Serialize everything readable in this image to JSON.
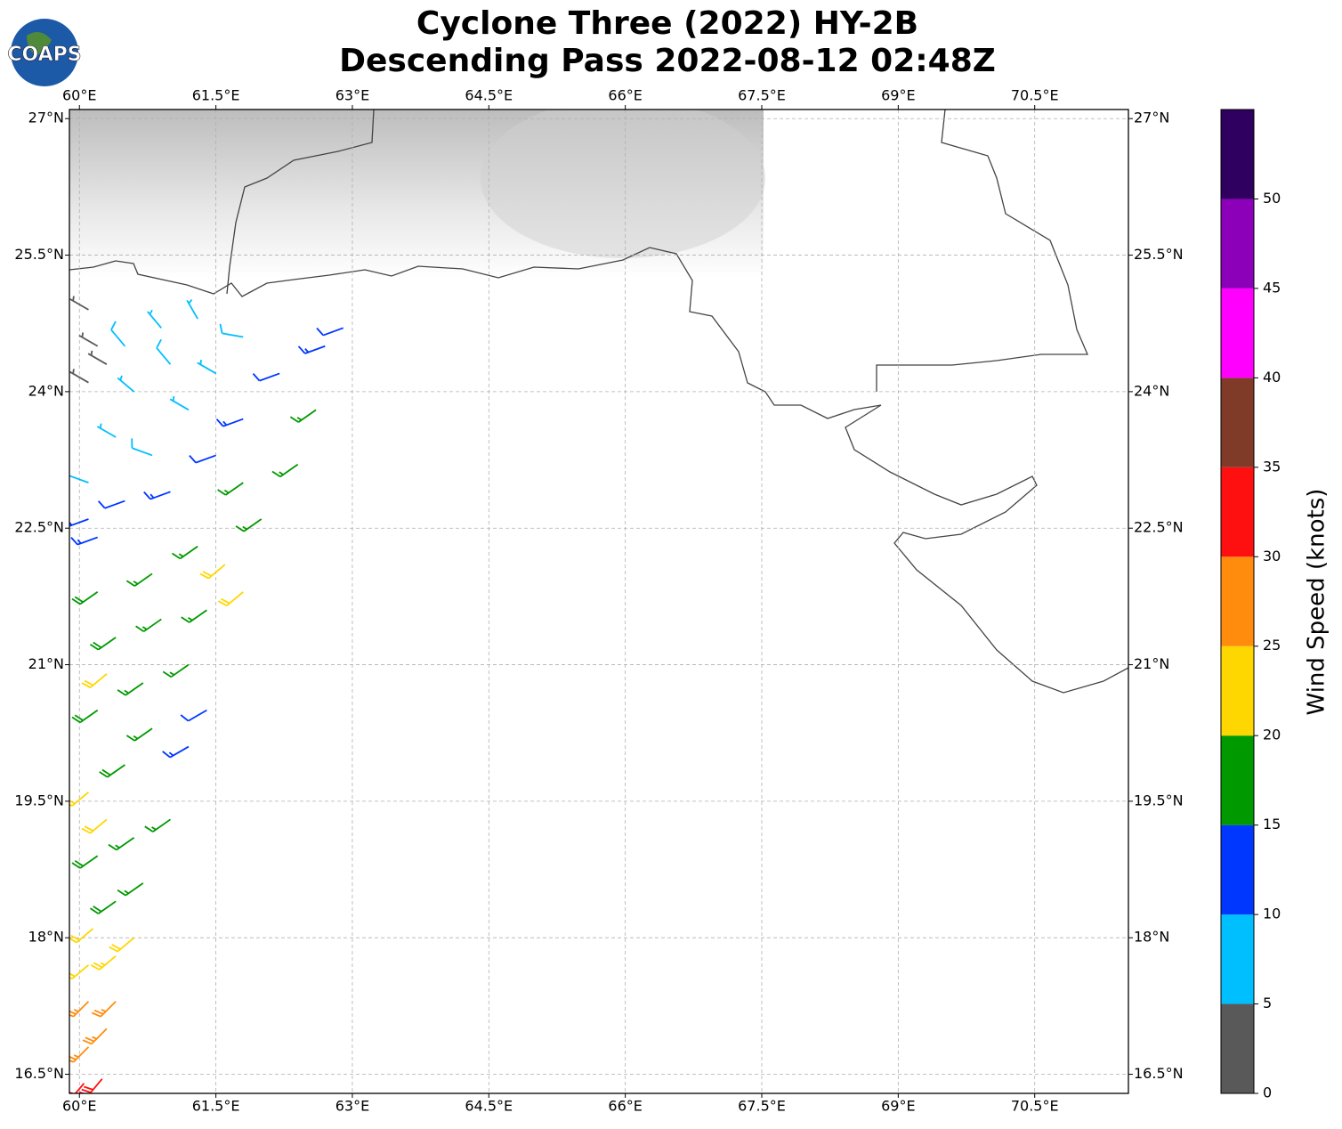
{
  "logo_text": "COAPS",
  "chart_data": {
    "type": "barbs",
    "title": "Cyclone Three (2022) HY-2B",
    "subtitle": "Descending Pass 2022-08-12 02:48Z",
    "xlim": [
      59.89,
      71.53
    ],
    "ylim": [
      16.29,
      27.1
    ],
    "xticks": [
      {
        "value": 60,
        "label": "60°E"
      },
      {
        "value": 61.5,
        "label": "61.5°E"
      },
      {
        "value": 63,
        "label": "63°E"
      },
      {
        "value": 64.5,
        "label": "64.5°E"
      },
      {
        "value": 66,
        "label": "66°E"
      },
      {
        "value": 67.5,
        "label": "67.5°E"
      },
      {
        "value": 69,
        "label": "69°E"
      },
      {
        "value": 70.5,
        "label": "70.5°E"
      }
    ],
    "yticks": [
      {
        "value": 16.5,
        "label": "16.5°N"
      },
      {
        "value": 18,
        "label": "18°N"
      },
      {
        "value": 19.5,
        "label": "19.5°N"
      },
      {
        "value": 21,
        "label": "21°N"
      },
      {
        "value": 22.5,
        "label": "22.5°N"
      },
      {
        "value": 24,
        "label": "24°N"
      },
      {
        "value": 25.5,
        "label": "25.5°N"
      },
      {
        "value": 27,
        "label": "27°N"
      }
    ],
    "grid": true,
    "colorbar": {
      "label": "Wind Speed (knots)",
      "bounds": [
        0,
        5,
        10,
        15,
        20,
        25,
        30,
        35,
        40,
        45,
        50,
        55
      ],
      "colors": [
        "#595959",
        "#00bfff",
        "#0037ff",
        "#009900",
        "#ffd700",
        "#ff8c0d",
        "#ff1010",
        "#803a28",
        "#ff00ff",
        "#8b00b8",
        "#300060"
      ],
      "ticks": [
        0,
        5,
        10,
        15,
        20,
        25,
        30,
        35,
        40,
        45,
        50
      ]
    },
    "barbs": {
      "lon": [
        60.05,
        60.25,
        60.1,
        60.3,
        60.1,
        60.4,
        60.1,
        60.4,
        60.15,
        60.6,
        60.4,
        60.7,
        60.2,
        60.6,
        61.0,
        60.1,
        60.3,
        61.2,
        61.4,
        60.5,
        60.8,
        60.2,
        60.7,
        61.2,
        60.4,
        60.9,
        61.4,
        60.2,
        60.8,
        61.3,
        62.0,
        62.4,
        62.6,
        61.8,
        60.3,
        61.8,
        61.6,
        60.2,
        60.5,
        61.0,
        61.5,
        61.8,
        62.2,
        62.7,
        62.9,
        60.1,
        60.1,
        60.4,
        60.8,
        60.6,
        61.0,
        61.2,
        61.5,
        61.8,
        60.9,
        61.3,
        60.5,
        60.1,
        60.2,
        60.1,
        60.3
      ],
      "lat": [
        16.4,
        16.45,
        16.8,
        17.0,
        17.3,
        17.3,
        17.7,
        17.8,
        18.1,
        18.0,
        18.4,
        18.6,
        18.9,
        19.1,
        19.3,
        19.6,
        19.3,
        20.1,
        20.5,
        19.9,
        20.3,
        20.5,
        20.8,
        21.0,
        21.3,
        21.5,
        21.6,
        21.8,
        22.0,
        22.3,
        22.6,
        23.2,
        23.8,
        23.0,
        20.9,
        21.8,
        22.1,
        22.4,
        22.8,
        22.9,
        23.3,
        23.7,
        24.2,
        24.5,
        24.7,
        22.6,
        23.0,
        23.5,
        23.3,
        24.0,
        24.3,
        23.8,
        24.2,
        24.6,
        24.7,
        24.8,
        24.5,
        24.9,
        24.5,
        24.1,
        24.3
      ],
      "speed": [
        32,
        31,
        27,
        26,
        26,
        27,
        22,
        23,
        22,
        21,
        18,
        17,
        18,
        17,
        16,
        22,
        21,
        13,
        12,
        18,
        17,
        18,
        17,
        16,
        18,
        17,
        16,
        18,
        17,
        16,
        17,
        17,
        16,
        16,
        21,
        22,
        21,
        13,
        12,
        13,
        12,
        13,
        12,
        13,
        12,
        14,
        8,
        7,
        8,
        7,
        8,
        7,
        7,
        8,
        6,
        7,
        8,
        4,
        3,
        4,
        3
      ],
      "dir": [
        220,
        220,
        225,
        225,
        225,
        225,
        230,
        230,
        230,
        230,
        235,
        235,
        235,
        235,
        235,
        230,
        230,
        240,
        240,
        235,
        235,
        235,
        235,
        235,
        235,
        235,
        235,
        235,
        235,
        235,
        235,
        235,
        235,
        235,
        230,
        230,
        230,
        250,
        250,
        250,
        250,
        250,
        250,
        250,
        250,
        250,
        290,
        300,
        290,
        310,
        320,
        300,
        300,
        280,
        320,
        330,
        320,
        300,
        300,
        300,
        300
      ]
    }
  }
}
